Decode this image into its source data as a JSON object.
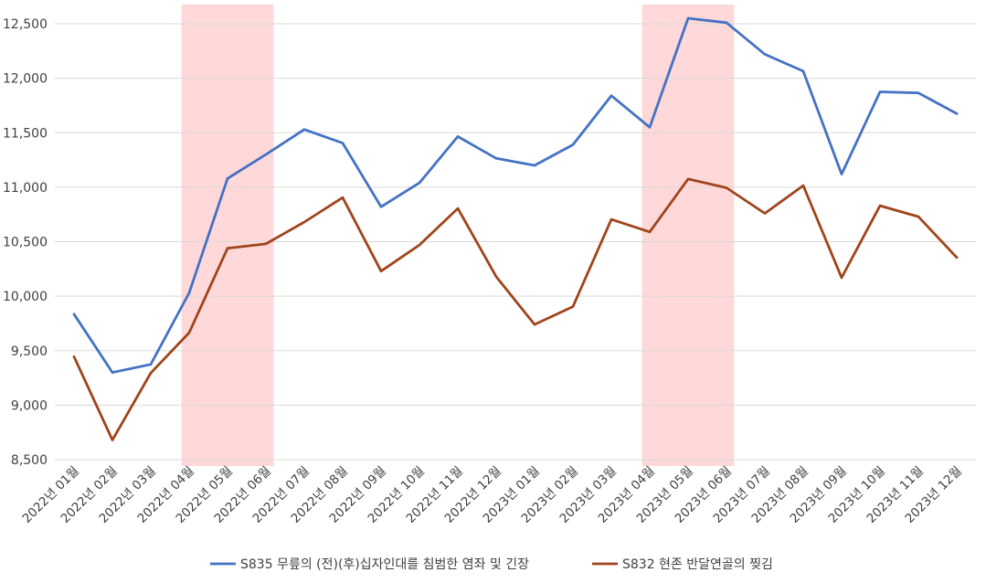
{
  "chart_data": {
    "type": "line",
    "title": "",
    "xlabel": "",
    "ylabel": "",
    "ylim": [
      8500,
      12500
    ],
    "y_ticks": [
      8500,
      9000,
      9500,
      10000,
      10500,
      11000,
      11500,
      12000,
      12500
    ],
    "y_tick_labels": [
      "8,500",
      "9,000",
      "9,500",
      "10,000",
      "10,500",
      "11,000",
      "11,500",
      "12,000",
      "12,500"
    ],
    "grid": true,
    "legend_position": "bottom",
    "categories": [
      "2022년 01월",
      "2022년 02월",
      "2022년 03월",
      "2022년 04월",
      "2022년 05월",
      "2022년 06월",
      "2022년 07월",
      "2022년 08월",
      "2022년 09월",
      "2022년 10월",
      "2022년 11월",
      "2022년 12월",
      "2023년 01월",
      "2023년 02월",
      "2023년 03월",
      "2023년 04월",
      "2023년 05월",
      "2023년 06월",
      "2023년 07월",
      "2023년 08월",
      "2023년 09월",
      "2023년 10월",
      "2023년 11월",
      "2023년 12월"
    ],
    "series": [
      {
        "name": "S835 무릎의 (전)(후)십자인대를 침범한 염좌 및 긴장",
        "color": "#4472C4",
        "values": [
          9835,
          9300,
          9375,
          10030,
          11080,
          11300,
          11530,
          11405,
          10820,
          11040,
          11465,
          11265,
          11200,
          11390,
          11840,
          11550,
          12550,
          12510,
          12220,
          12065,
          11120,
          11875,
          11865,
          11675
        ]
      },
      {
        "name": "S832 현존 반달연골의 찢김",
        "color": "#A0441B",
        "values": [
          9445,
          8680,
          9295,
          9665,
          10440,
          10480,
          10680,
          10905,
          10230,
          10470,
          10805,
          10180,
          9740,
          9905,
          10705,
          10590,
          11075,
          10995,
          10760,
          11015,
          10170,
          10830,
          10730,
          10355
        ]
      }
    ],
    "shaded_regions": [
      {
        "from": "2022년 04월",
        "to": "2022년 06월",
        "color": "#FFD9D9"
      },
      {
        "from": "2023년 04월",
        "to": "2023년 06월",
        "color": "#FFD9D9"
      }
    ]
  }
}
